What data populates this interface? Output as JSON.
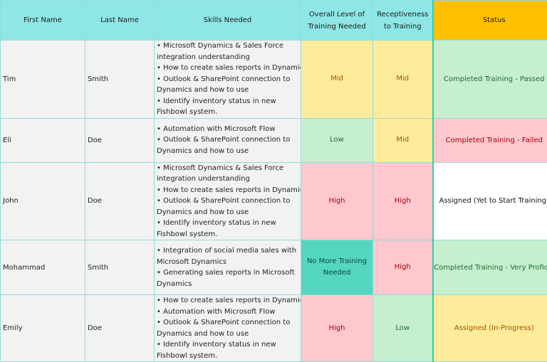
{
  "headers": {
    "first_name": "First Name",
    "last_name": "Last Name",
    "skills": "Skills Needed",
    "level": "Overall Level of Training Needed",
    "receptiveness": "Receptiveness to Training",
    "status": "Status"
  },
  "rows": [
    {
      "first": "Tim",
      "last": "Smith",
      "skills": [
        "• Microsoft Dynamics & Sales Force",
        "integration understanding",
        "• How to create sales reports in Dynamics",
        "• Outlook & SharePoint connection to",
        "Dynamics and how to use",
        "• Identify inventory status in new",
        "Fishbowl system."
      ],
      "level": "Mid",
      "receptiveness": "Mid",
      "status": "Completed Training - Passed"
    },
    {
      "first": "Eli",
      "last": "Doe",
      "skills": [
        "• Automation with Microsoft Flow",
        "• Outlook & SharePoint connection to",
        "Dynamics and how to use"
      ],
      "level": "Low",
      "receptiveness": "Mid",
      "status": "Completed Training - Failed"
    },
    {
      "first": "John",
      "last": "Doe",
      "skills": [
        "• Microsoft Dynamics & Sales Force",
        "integration understanding",
        "• How to create sales reports in Dynamics",
        "• Outlook & SharePoint connection to",
        "Dynamics and how to use",
        "• Identify inventory status in new",
        "Fishbowl system."
      ],
      "level": "High",
      "receptiveness": "High",
      "status": "Assigned (Yet to Start Training)"
    },
    {
      "first": "Mohammad",
      "last": "Smith",
      "skills": [
        "• Integration of social media sales with",
        "Microsoft Dynamics",
        "• Generating sales reports in Microsoft",
        "Dynamics"
      ],
      "level": "No More Training Needed",
      "receptiveness": "High",
      "status": "Completed Training - Very Proficie"
    },
    {
      "first": "Emily",
      "last": "Doe",
      "skills": [
        "• How to create sales reports in Dynamics",
        "• Automation with Microsoft Flow",
        "• Outlook & SharePoint connection to",
        "Dynamics and how to use",
        "• Identify inventory status in new",
        "Fishbowl system."
      ],
      "level": "High",
      "receptiveness": "Low",
      "status": "Assigned (In-Progress)"
    }
  ],
  "colors": {
    "header": "#8ee6e6",
    "status_header": "#ffc000",
    "low_fill": "#c6efce",
    "mid_fill": "#ffeb9c",
    "high_fill": "#ffc7ce",
    "no_more_fill": "#55d6be"
  }
}
